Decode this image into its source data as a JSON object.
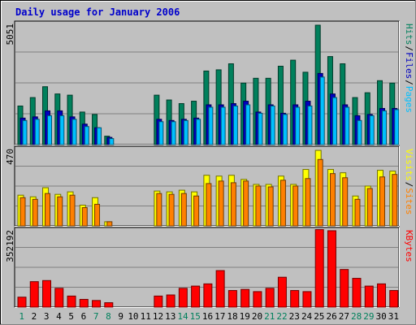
{
  "chart_data": {
    "type": "bar",
    "title": "Daily usage for January 2006",
    "title_color": "#0000cc",
    "days": [
      "1",
      "2",
      "3",
      "4",
      "5",
      "6",
      "7",
      "8",
      "9",
      "10",
      "11",
      "12",
      "13",
      "14",
      "15",
      "16",
      "17",
      "18",
      "19",
      "20",
      "21",
      "22",
      "23",
      "24",
      "25",
      "26",
      "27",
      "28",
      "29",
      "30",
      "31"
    ],
    "weekend_days": [
      "1",
      "7",
      "8",
      "14",
      "15",
      "21",
      "22",
      "28",
      "29"
    ],
    "weekday_label_color": "#000000",
    "weekend_label_color": "#00805c",
    "panels": {
      "top": {
        "ymax_label": "5051",
        "ylim": [
          0,
          5051
        ],
        "legend": {
          "hits": "Hits",
          "files": "Files",
          "pages": "Pages",
          "sep": "/"
        },
        "series": [
          {
            "name": "Hits",
            "color": "#00805c",
            "values": [
              1600,
              1950,
              2400,
              2100,
              2050,
              1350,
              1250,
              350,
              0,
              0,
              0,
              2050,
              1850,
              1700,
              1800,
              3050,
              3100,
              3350,
              2550,
              2750,
              2750,
              3250,
              3500,
              3000,
              4950,
              3650,
              3350,
              1950,
              2150,
              2650,
              2550
            ]
          },
          {
            "name": "Files",
            "color": "#0000c0",
            "values": [
              1100,
              1150,
              1400,
              1400,
              1150,
              850,
              700,
              300,
              0,
              0,
              0,
              1050,
              1000,
              1050,
              1100,
              1650,
              1650,
              1700,
              1800,
              1350,
              1650,
              1300,
              1650,
              1800,
              2950,
              2100,
              1650,
              1200,
              1250,
              1500,
              1500
            ]
          },
          {
            "name": "Pages",
            "color": "#00c0ff",
            "values": [
              1000,
              1050,
              1200,
              1200,
              1050,
              750,
              700,
              250,
              0,
              0,
              0,
              950,
              950,
              1000,
              1050,
              1550,
              1550,
              1600,
              1650,
              1300,
              1600,
              1250,
              1550,
              1600,
              2800,
              1950,
              1550,
              1000,
              1200,
              1400,
              1450
            ]
          }
        ]
      },
      "middle": {
        "ymax_label": "470",
        "ylim": [
          0,
          470
        ],
        "legend": {
          "visits": "Visits",
          "sites": "Sites",
          "sep": "/"
        },
        "series": [
          {
            "name": "Visits",
            "color": "#ffff00",
            "values": [
              185,
              175,
              230,
              190,
              205,
              125,
              170,
              25,
              0,
              0,
              0,
              210,
              205,
              215,
              205,
              305,
              300,
              305,
              280,
              250,
              250,
              300,
              250,
              340,
              455,
              340,
              320,
              180,
              240,
              335,
              330
            ]
          },
          {
            "name": "Sites",
            "color": "#ff8000",
            "values": [
              170,
              160,
              195,
              175,
              185,
              110,
              130,
              25,
              0,
              0,
              0,
              195,
              190,
              195,
              180,
              255,
              270,
              260,
              270,
              240,
              235,
              275,
              240,
              285,
              400,
              315,
              290,
              160,
              225,
              295,
              310
            ]
          }
        ]
      },
      "bottom": {
        "ymax_label": "352192",
        "ylim": [
          0,
          352192
        ],
        "legend": {
          "kbytes": "KBytes"
        },
        "series": [
          {
            "name": "KBytes",
            "color": "#ff0000",
            "values": [
              45000,
              115000,
              120000,
              85000,
              50000,
              35000,
              30000,
              20000,
              0,
              0,
              0,
              50000,
              55000,
              85000,
              95000,
              105000,
              165000,
              75000,
              80000,
              70000,
              85000,
              135000,
              75000,
              70000,
              350000,
              345000,
              170000,
              130000,
              95000,
              105000,
              75000
            ]
          }
        ]
      }
    }
  }
}
